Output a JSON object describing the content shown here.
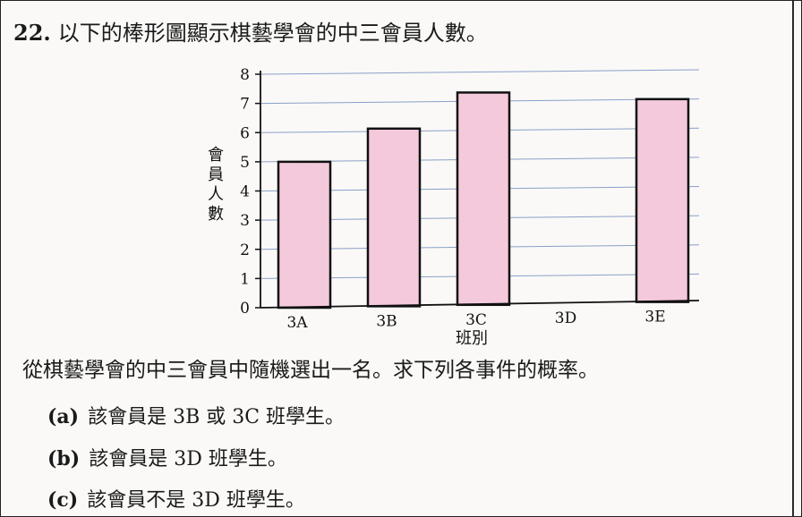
{
  "question": {
    "number": "22.",
    "text": "以下的棒形圖顯示棋藝學會的中三會員人數。"
  },
  "chart_data": {
    "type": "bar",
    "categories": [
      "3A",
      "3B",
      "3C",
      "3D",
      "3E"
    ],
    "values": [
      5,
      6.1,
      7.3,
      0,
      7
    ],
    "xlabel": "班別",
    "ylabel": "會員人數",
    "ylim": [
      0,
      8
    ],
    "yticks": [
      "0",
      "1",
      "2",
      "3",
      "4",
      "5",
      "6",
      "7",
      "8"
    ],
    "grid": true,
    "colors": {
      "bar_fill": "#f4c9dc",
      "bar_stroke": "#111111",
      "grid": "#8aa0c8"
    }
  },
  "instruction": "從棋藝學會的中三會員中隨機選出一名。求下列各事件的概率。",
  "parts": [
    {
      "label": "(a)",
      "text": "該會員是 3B 或 3C 班學生。"
    },
    {
      "label": "(b)",
      "text": "該會員是 3D 班學生。"
    },
    {
      "label": "(c)",
      "text": "該會員不是 3D 班學生。"
    }
  ]
}
